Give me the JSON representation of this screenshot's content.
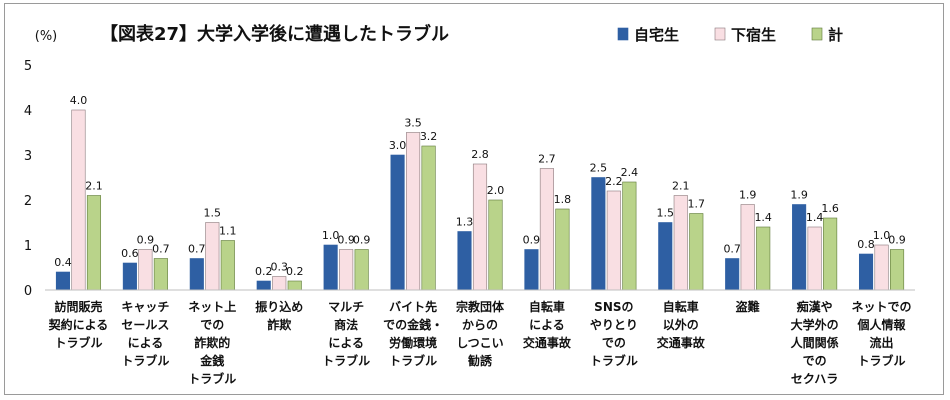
{
  "chart_data": {
    "type": "bar",
    "title": "【図表27】大学入学後に遭遇したトラブル",
    "ylabel": "(%)",
    "ylim": [
      0,
      5
    ],
    "yticks": [
      "0",
      "1",
      "2",
      "3",
      "4",
      "5"
    ],
    "grid": false,
    "legend_position": "top-right",
    "categories": [
      [
        "訪問販売",
        "契約による",
        "トラブル"
      ],
      [
        "キャッチ",
        "セールス",
        "による",
        "トラブル"
      ],
      [
        "ネット上",
        "での",
        "詐欺的",
        "金銭",
        "トラブル"
      ],
      [
        "振り込め",
        "詐欺"
      ],
      [
        "マルチ",
        "商法",
        "による",
        "トラブル"
      ],
      [
        "バイト先",
        "での金銭・",
        "労働環境",
        "トラブル"
      ],
      [
        "宗教団体",
        "からの",
        "しつこい",
        "勧誘"
      ],
      [
        "自転車",
        "による",
        "交通事故"
      ],
      [
        "SNSの",
        "やりとり",
        "での",
        "トラブル"
      ],
      [
        "自転車",
        "以外の",
        "交通事故"
      ],
      [
        "盗難"
      ],
      [
        "痴漢や",
        "大学外の",
        "人間関係",
        "での",
        "セクハラ"
      ],
      [
        "ネットでの",
        "個人情報",
        "流出",
        "トラブル"
      ]
    ],
    "series": [
      {
        "name": "自宅生",
        "color": "#2e5fa3",
        "values": [
          0.4,
          0.6,
          0.7,
          0.2,
          1.0,
          3.0,
          1.3,
          0.9,
          2.5,
          1.5,
          0.7,
          1.9,
          0.8
        ]
      },
      {
        "name": "下宿生",
        "color": "#f9dfe3",
        "values": [
          4.0,
          0.9,
          1.5,
          0.3,
          0.9,
          3.5,
          2.8,
          2.7,
          2.2,
          2.1,
          1.9,
          1.4,
          1.0
        ]
      },
      {
        "name": "計",
        "color": "#b9d38a",
        "values": [
          2.1,
          0.7,
          1.1,
          0.2,
          0.9,
          3.2,
          2.0,
          1.8,
          2.4,
          1.7,
          1.4,
          1.6,
          0.9
        ]
      }
    ],
    "data_labels": [
      [
        "0.4",
        "4.0",
        "2.1"
      ],
      [
        "0.6",
        "0.9",
        "0.7"
      ],
      [
        "0.7",
        "1.5",
        "1.1"
      ],
      [
        "0.2",
        "0.3",
        "0.2"
      ],
      [
        "1.0",
        "0.9",
        "0.9"
      ],
      [
        "3.0",
        "3.5",
        "3.2"
      ],
      [
        "1.3",
        "2.8",
        "2.0"
      ],
      [
        "0.9",
        "2.7",
        "1.8"
      ],
      [
        "2.5",
        "2.2",
        "2.4"
      ],
      [
        "1.5",
        "2.1",
        "1.7"
      ],
      [
        "0.7",
        "1.9",
        "1.4"
      ],
      [
        "1.9",
        "1.4",
        "1.6"
      ],
      [
        "0.8",
        "1.0",
        "0.9"
      ]
    ],
    "border_colors": [
      "#2e5fa3",
      "#8a7a7c",
      "#5f7a3a"
    ]
  }
}
